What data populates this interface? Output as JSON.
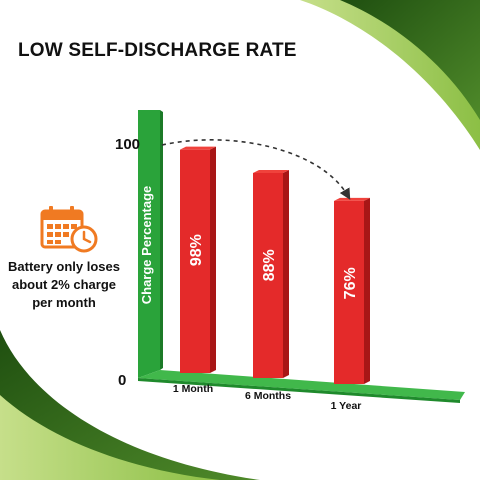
{
  "title": "LOW SELF-DISCHARGE RATE",
  "callout": {
    "icon": "calendar-clock-icon",
    "line1": "Battery only loses",
    "line2": "about 2% charge",
    "line3": "per month"
  },
  "colors": {
    "bar": "#e42a2a",
    "bar_light": "#f0423c",
    "bar_dark": "#a81616",
    "axis": "#2aa33a",
    "accent": "#f07a22",
    "swoosh_dark": "#2f6a1a",
    "swoosh_light": "#8fc14a"
  },
  "chart_data": {
    "type": "bar",
    "categories": [
      "1 Month",
      "6 Months",
      "1 Year"
    ],
    "values": [
      98,
      88,
      76
    ],
    "value_labels": [
      "98%",
      "88%",
      "76%"
    ],
    "ylabel": "Charge Percentage",
    "yticks": [
      "0",
      "100"
    ],
    "ylim": [
      0,
      100
    ],
    "annotation": "dashed arrow from 100 to the 1 Year bar"
  }
}
